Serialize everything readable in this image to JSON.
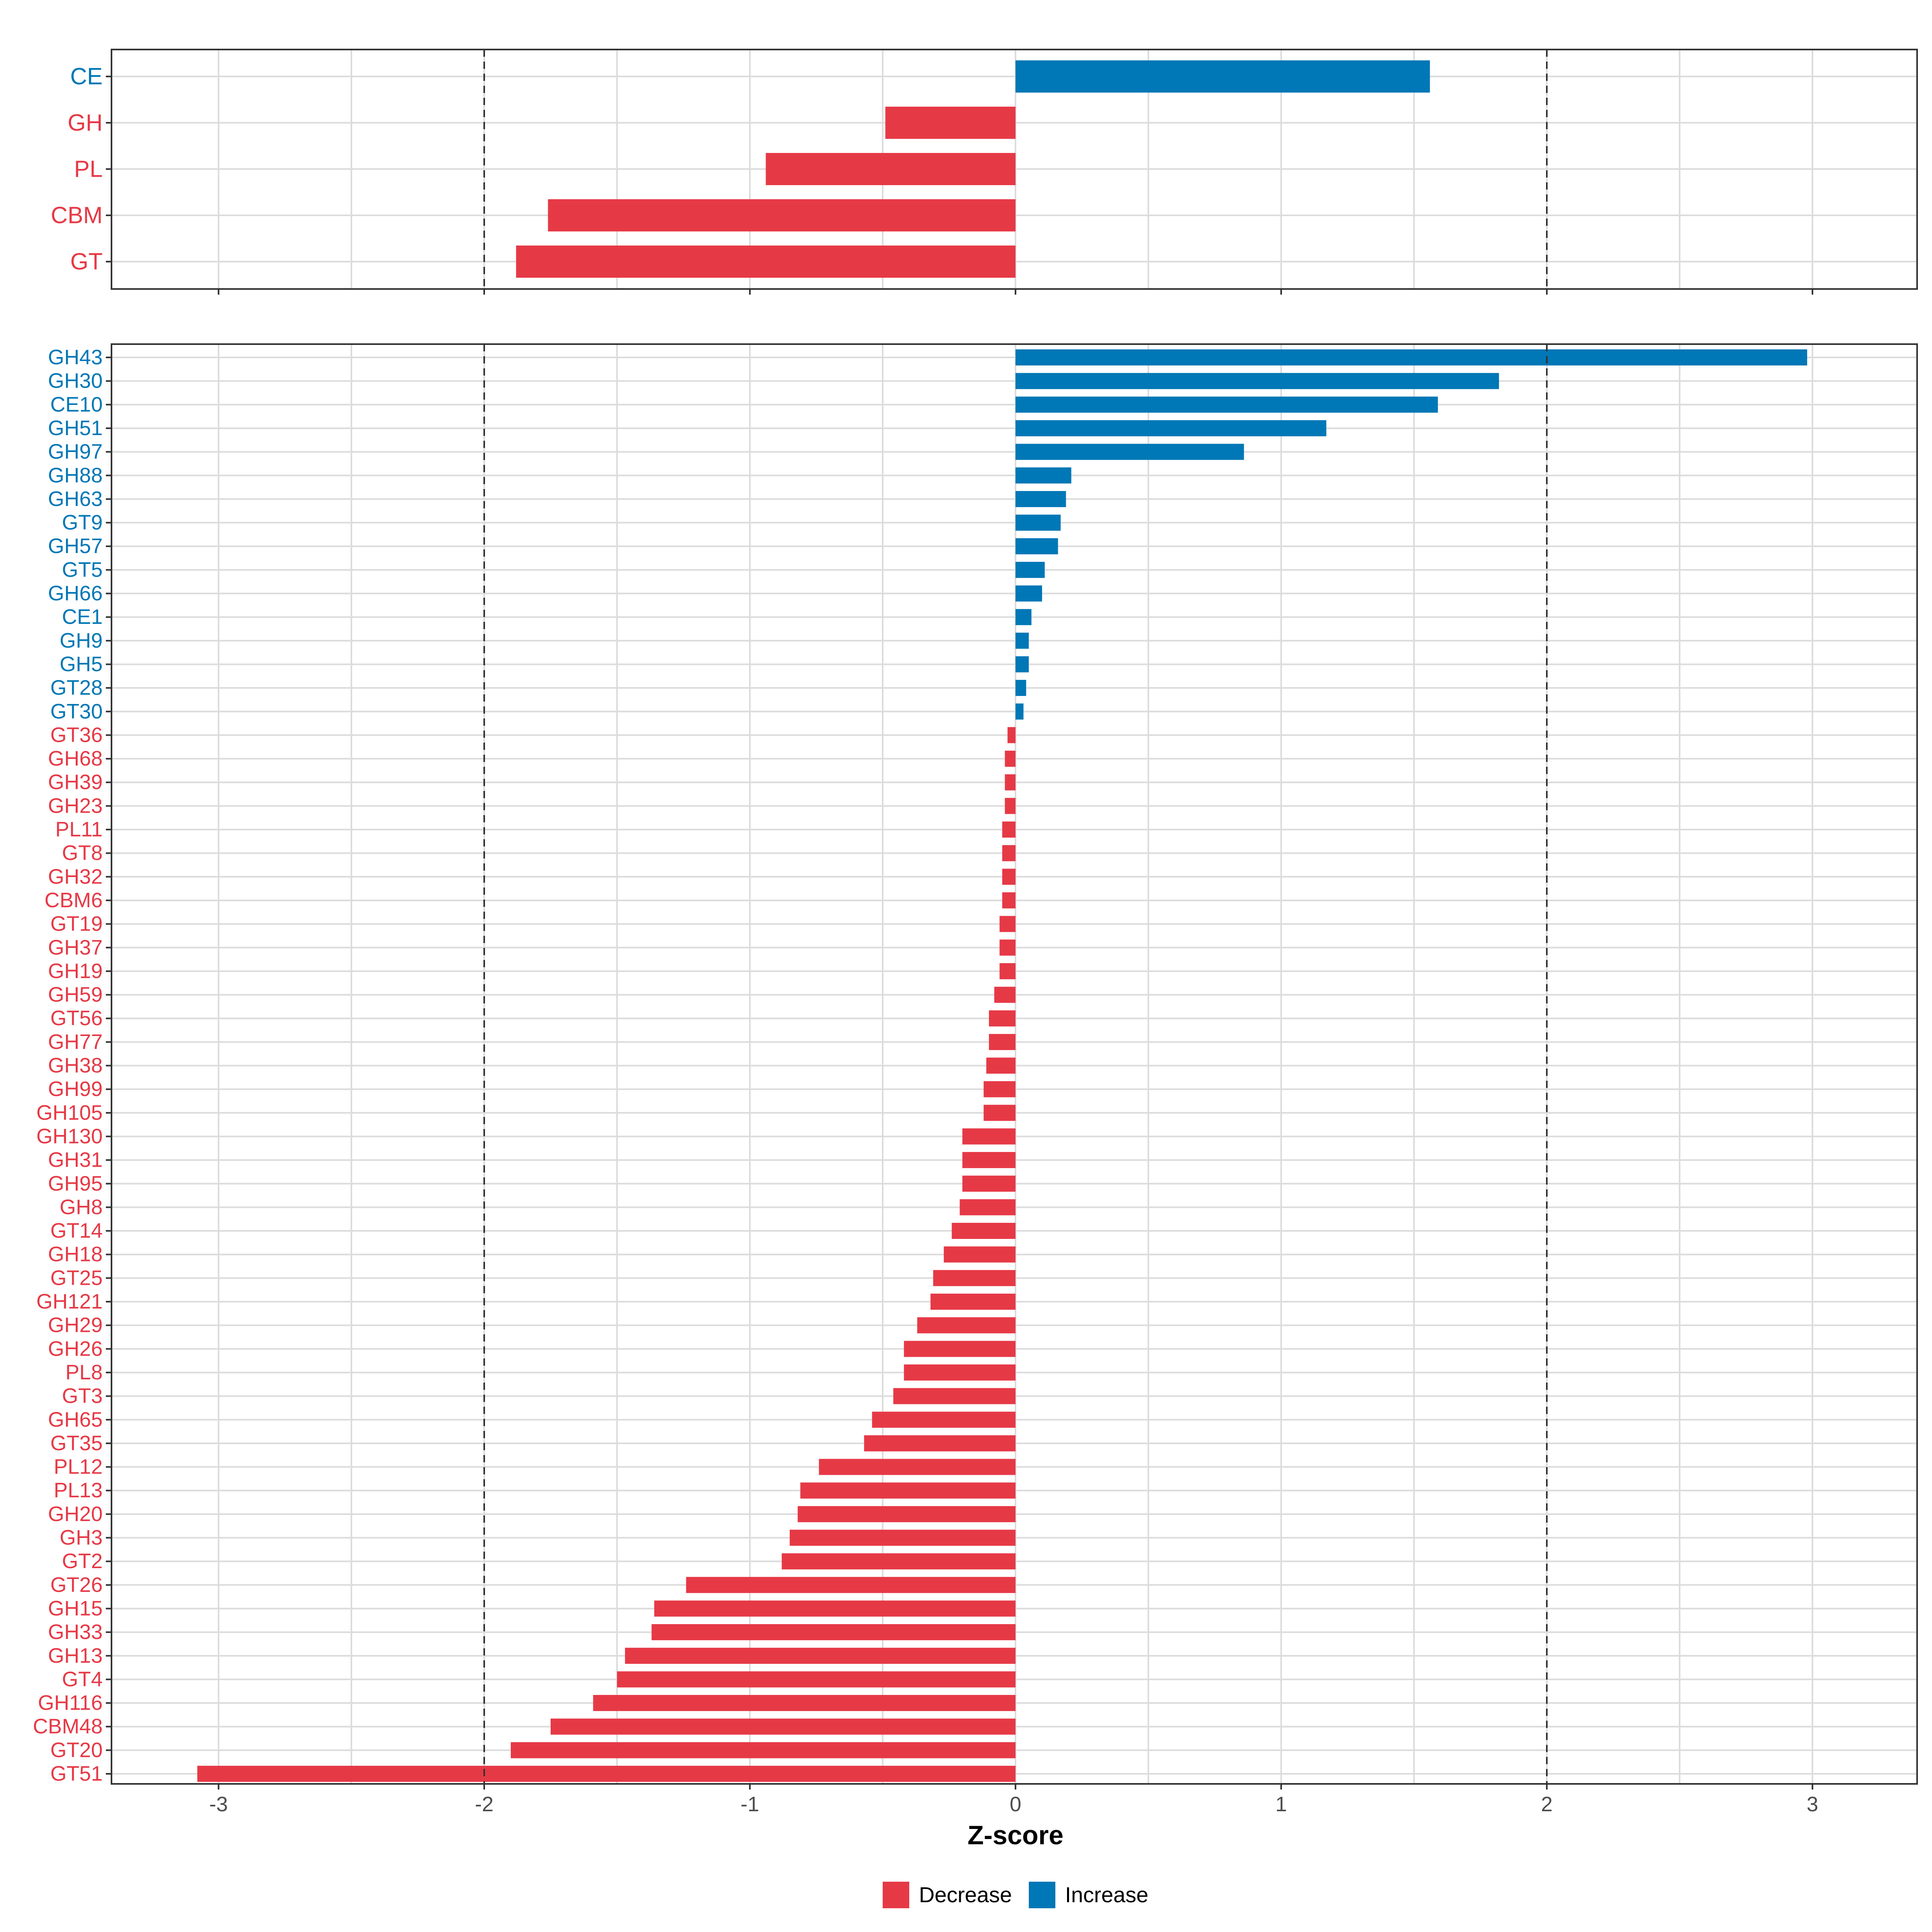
{
  "colors": {
    "decrease": "#E63946",
    "increase": "#0077B6"
  },
  "chart_data": [
    {
      "type": "bar",
      "orientation": "horizontal",
      "panel": "top",
      "categories": [
        "CE",
        "GH",
        "PL",
        "CBM",
        "GT"
      ],
      "values": [
        1.56,
        -0.49,
        -0.94,
        -1.76,
        -1.88
      ],
      "groups": [
        "Increase",
        "Decrease",
        "Decrease",
        "Decrease",
        "Decrease"
      ],
      "xlim": [
        -3.4,
        3.4
      ],
      "reference_lines": [
        -2,
        2
      ],
      "grid": true
    },
    {
      "type": "bar",
      "orientation": "horizontal",
      "panel": "bottom",
      "categories": [
        "GH43",
        "GH30",
        "CE10",
        "GH51",
        "GH97",
        "GH88",
        "GH63",
        "GT9",
        "GH57",
        "GT5",
        "GH66",
        "CE1",
        "GH9",
        "GH5",
        "GT28",
        "GT30",
        "GT36",
        "GH68",
        "GH39",
        "GH23",
        "PL11",
        "GT8",
        "GH32",
        "CBM6",
        "GT19",
        "GH37",
        "GH19",
        "GH59",
        "GT56",
        "GH77",
        "GH38",
        "GH99",
        "GH105",
        "GH130",
        "GH31",
        "GH95",
        "GH8",
        "GT14",
        "GH18",
        "GT25",
        "GH121",
        "GH29",
        "GH26",
        "PL8",
        "GT3",
        "GH65",
        "GT35",
        "PL12",
        "PL13",
        "GH20",
        "GH3",
        "GT2",
        "GT26",
        "GH15",
        "GH33",
        "GH13",
        "GT4",
        "GH116",
        "CBM48",
        "GT20",
        "GT51"
      ],
      "values": [
        2.98,
        1.82,
        1.59,
        1.17,
        0.86,
        0.21,
        0.19,
        0.17,
        0.16,
        0.11,
        0.1,
        0.06,
        0.05,
        0.05,
        0.04,
        0.03,
        -0.03,
        -0.04,
        -0.04,
        -0.04,
        -0.05,
        -0.05,
        -0.05,
        -0.05,
        -0.06,
        -0.06,
        -0.06,
        -0.08,
        -0.1,
        -0.1,
        -0.11,
        -0.12,
        -0.12,
        -0.2,
        -0.2,
        -0.2,
        -0.21,
        -0.24,
        -0.27,
        -0.31,
        -0.32,
        -0.37,
        -0.42,
        -0.42,
        -0.46,
        -0.54,
        -0.57,
        -0.74,
        -0.81,
        -0.82,
        -0.85,
        -0.88,
        -1.24,
        -1.36,
        -1.37,
        -1.47,
        -1.5,
        -1.59,
        -1.75,
        -1.9,
        -3.08
      ],
      "xlim": [
        -3.4,
        3.4
      ],
      "xticks": [
        -3,
        -2,
        -1,
        0,
        1,
        2,
        3
      ],
      "reference_lines": [
        -2,
        2
      ],
      "grid": true
    }
  ],
  "axis": {
    "xlabel": "Z-score",
    "tick_labels": [
      "-3",
      "-2",
      "-1",
      "0",
      "1",
      "2",
      "3"
    ]
  },
  "legend": {
    "position": "bottom",
    "items": [
      {
        "label": "Decrease",
        "color": "#E63946"
      },
      {
        "label": "Increase",
        "color": "#0077B6"
      }
    ]
  }
}
